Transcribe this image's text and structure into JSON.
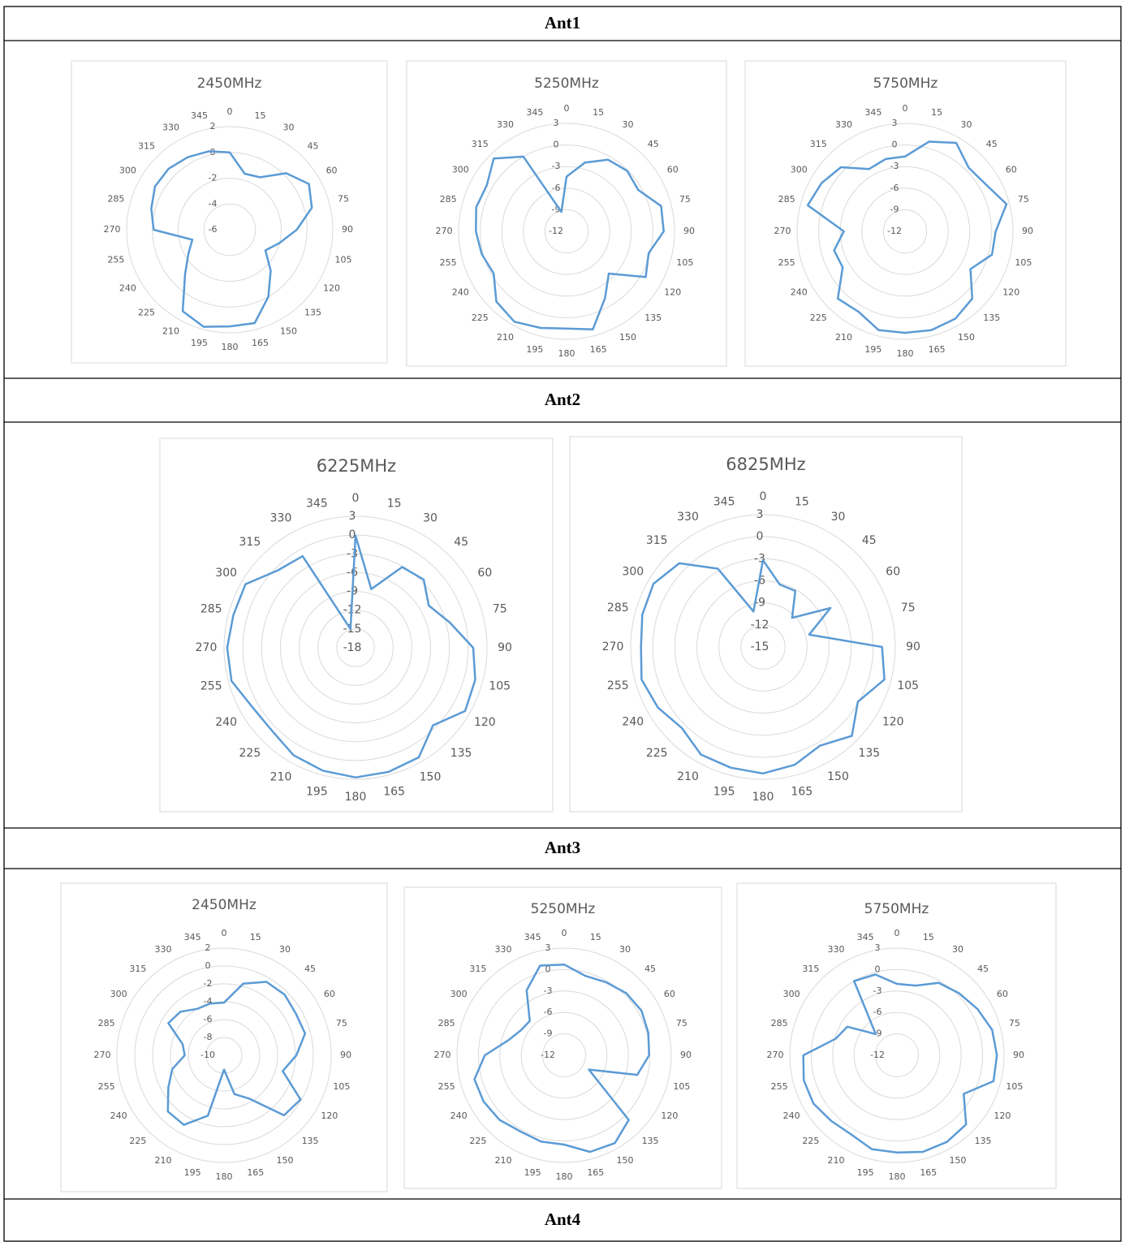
{
  "sections": [
    "Ant1",
    "Ant2",
    "Ant3",
    "Ant4"
  ],
  "chart_data": [
    {
      "type": "radar",
      "title": "2450MHz",
      "color": "#5b9bd5",
      "categories": [
        0,
        15,
        30,
        45,
        60,
        75,
        90,
        105,
        120,
        135,
        150,
        165,
        180,
        195,
        210,
        225,
        240,
        255,
        270,
        285,
        300,
        315,
        330,
        345
      ],
      "values": [
        0.0,
        -1.5,
        -1.3,
        0.2,
        1.1,
        0.6,
        -0.8,
        -2.0,
        -2.8,
        -1.5,
        0.0,
        1.5,
        1.5,
        1.8,
        1.3,
        -1.1,
        -2.3,
        -3.0,
        -0.1,
        0.3,
        0.7,
        0.7,
        0.5,
        0.3
      ],
      "ylim": [
        -6,
        2
      ],
      "yticks": [
        2,
        0,
        -2,
        -4,
        -6
      ]
    },
    {
      "type": "radar",
      "title": "5250MHz",
      "color": "#5b9bd5",
      "categories": [
        0,
        15,
        30,
        45,
        60,
        75,
        90,
        105,
        120,
        135,
        150,
        165,
        180,
        195,
        210,
        225,
        240,
        255,
        270,
        285,
        300,
        315,
        330,
        345
      ],
      "values": [
        -4.4,
        -2.1,
        -0.5,
        -0.1,
        -0.5,
        1.6,
        1.5,
        -0.2,
        0.7,
        -3.7,
        -1.3,
        2.1,
        1.5,
        1.9,
        2.5,
        1.8,
        -0.3,
        0.2,
        0.6,
        1.0,
        0.8,
        2.3,
        0.0,
        -9.2
      ],
      "ylim": [
        -12,
        3
      ],
      "yticks": [
        3,
        0,
        -3,
        -6,
        -9,
        -12
      ]
    },
    {
      "type": "radar",
      "title": "5750MHz",
      "color": "#5b9bd5",
      "categories": [
        0,
        15,
        30,
        45,
        60,
        75,
        90,
        105,
        120,
        135,
        150,
        165,
        180,
        195,
        210,
        225,
        240,
        255,
        270,
        285,
        300,
        315,
        330,
        345
      ],
      "values": [
        -1.6,
        0.9,
        2.2,
        0.5,
        1.0,
        2.6,
        0.6,
        0.5,
        -1.5,
        1.2,
        2.0,
        2.2,
        2.1,
        2.2,
        0.9,
        1.2,
        -2.0,
        -1.8,
        -3.5,
        2.0,
        1.4,
        0.6,
        -2.0,
        -1.6
      ],
      "ylim": [
        -12,
        3
      ],
      "yticks": [
        3,
        0,
        -3,
        -6,
        -9,
        -12
      ]
    },
    {
      "type": "radar",
      "title": "6225MHz",
      "color": "#5b9bd5",
      "categories": [
        0,
        15,
        30,
        45,
        60,
        75,
        90,
        105,
        120,
        135,
        150,
        165,
        180,
        195,
        210,
        225,
        240,
        255,
        270,
        285,
        300,
        315,
        330,
        345
      ],
      "values": [
        -0.1,
        -8.3,
        -3.1,
        -2.6,
        -4.5,
        -2.4,
        0.8,
        1.8,
        2.2,
        -0.5,
        2.2,
        2.5,
        2.7,
        2.3,
        1.8,
        0.8,
        1.0,
        2.5,
        2.5,
        2.2,
        2.3,
        -0.5,
        -1.1,
        -14.9
      ],
      "ylim": [
        -18,
        3
      ],
      "yticks": [
        3,
        0,
        -3,
        -6,
        -9,
        -12,
        -15,
        -18
      ]
    },
    {
      "type": "radar",
      "title": "6825MHz",
      "color": "#5b9bd5",
      "categories": [
        0,
        15,
        30,
        45,
        60,
        75,
        90,
        105,
        120,
        135,
        150,
        165,
        180,
        195,
        210,
        225,
        240,
        255,
        270,
        285,
        300,
        315,
        330,
        345
      ],
      "values": [
        -3.2,
        -6.2,
        -6.2,
        -9.4,
        -4.4,
        -8.5,
        1.2,
        2.1,
        -0.1,
        2.1,
        0.5,
        1.6,
        2.2,
        2.0,
        1.9,
        0.6,
        1.5,
        2.1,
        1.6,
        2.0,
        2.2,
        1.1,
        -2.7,
        -10.0
      ],
      "ylim": [
        -15,
        3
      ],
      "yticks": [
        3,
        0,
        -3,
        -6,
        -9,
        -12,
        -15
      ]
    },
    {
      "type": "radar",
      "title": "2450MHz",
      "color": "#5b9bd5",
      "categories": [
        0,
        15,
        30,
        45,
        60,
        75,
        90,
        105,
        120,
        135,
        150,
        165,
        180,
        195,
        210,
        225,
        240,
        255,
        270,
        285,
        300,
        315,
        330,
        345
      ],
      "values": [
        -4.1,
        -1.7,
        -0.5,
        -0.4,
        -0.7,
        -0.6,
        -1.9,
        -3.2,
        -0.1,
        -0.5,
        -4.4,
        -5.5,
        -8.4,
        -3.0,
        -1.0,
        -1.1,
        -2.8,
        -4.0,
        -5.6,
        -5.2,
        -2.8,
        -3.1,
        -4.0,
        -4.0
      ],
      "ylim": [
        -10,
        2
      ],
      "yticks": [
        2,
        0,
        -2,
        -4,
        -6,
        -8,
        -10
      ]
    },
    {
      "type": "radar",
      "title": "5250MHz",
      "color": "#5b9bd5",
      "categories": [
        0,
        15,
        30,
        45,
        60,
        75,
        90,
        105,
        120,
        135,
        150,
        165,
        180,
        195,
        210,
        225,
        240,
        255,
        270,
        285,
        300,
        315,
        330,
        345
      ],
      "values": [
        0.7,
        -0.5,
        -0.2,
        0.3,
        0.5,
        0.2,
        -0.1,
        -1.4,
        -8.0,
        0.8,
        2.2,
        2.0,
        0.5,
        0.5,
        0.3,
        0.8,
        1.0,
        1.0,
        -0.9,
        -3.9,
        -5.0,
        -5.2,
        -1.5,
        1.0
      ],
      "ylim": [
        -12,
        3
      ],
      "yticks": [
        3,
        0,
        -3,
        -6,
        -9,
        -12
      ]
    },
    {
      "type": "radar",
      "title": "5750MHz",
      "color": "#5b9bd5",
      "categories": [
        0,
        15,
        30,
        45,
        60,
        75,
        90,
        105,
        120,
        135,
        150,
        165,
        180,
        195,
        210,
        225,
        240,
        255,
        270,
        285,
        300,
        315,
        330,
        345
      ],
      "values": [
        -2.0,
        -1.9,
        -0.3,
        0.3,
        1.0,
        1.8,
        2.0,
        2.0,
        -1.2,
        1.7,
        2.0,
        2.0,
        1.6,
        1.6,
        0.8,
        1.0,
        1.5,
        1.5,
        1.1,
        -3.1,
        -4.0,
        -7.8,
        0.0,
        -0.3
      ],
      "ylim": [
        -12,
        3
      ],
      "yticks": [
        3,
        0,
        -3,
        -6,
        -9,
        -12
      ]
    }
  ]
}
